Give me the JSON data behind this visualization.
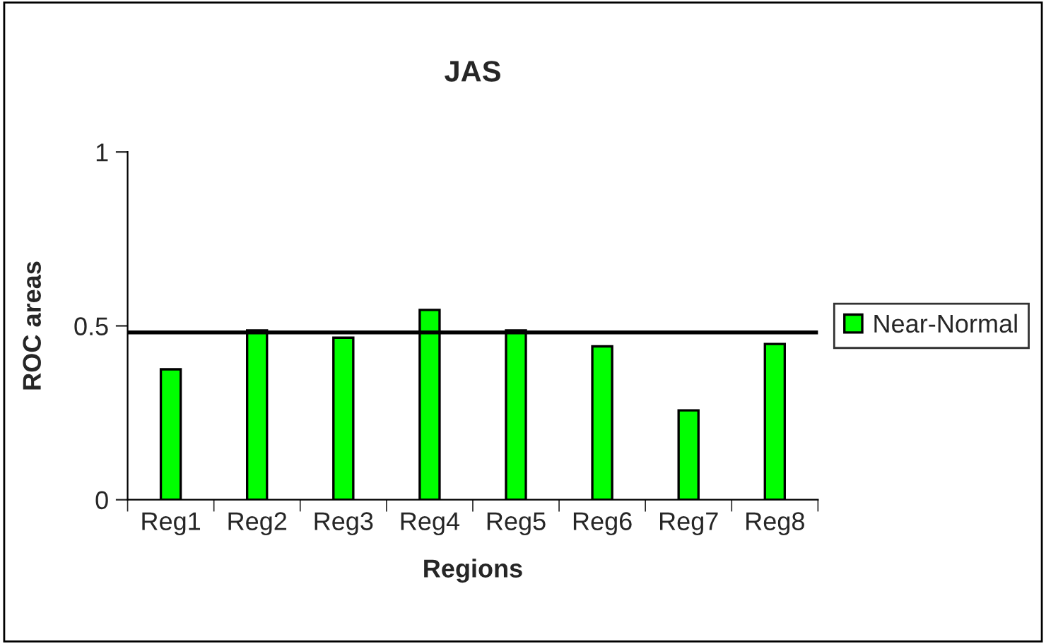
{
  "chart_data": {
    "type": "bar",
    "title": "JAS",
    "xlabel": "Regions",
    "ylabel": "ROC areas",
    "categories": [
      "Reg1",
      "Reg2",
      "Reg3",
      "Reg4",
      "Reg5",
      "Reg6",
      "Reg7",
      "Reg8"
    ],
    "series": [
      {
        "name": "Near-Normal",
        "color": "#00ff00",
        "values": [
          0.375,
          0.487,
          0.466,
          0.546,
          0.487,
          0.441,
          0.257,
          0.448
        ]
      }
    ],
    "ylim": [
      0,
      1
    ],
    "yticks": [
      0,
      0.5,
      1
    ],
    "ref_lines": [
      {
        "axis": "y",
        "value": 0.481,
        "color": "#000000",
        "line_style": "solid"
      }
    ],
    "grid": false,
    "legend": "right"
  }
}
